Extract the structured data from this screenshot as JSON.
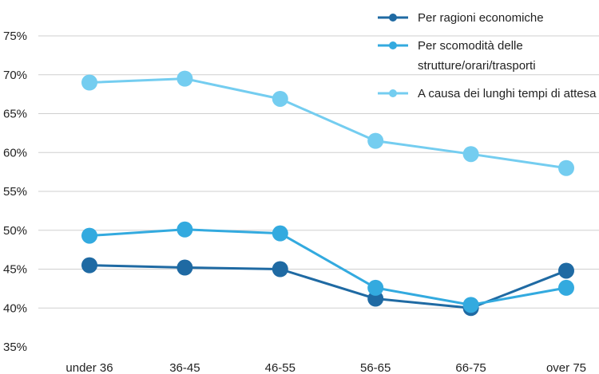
{
  "chart_data": {
    "type": "line",
    "categories": [
      "under 36",
      "36-45",
      "46-55",
      "56-65",
      "66-75",
      "over 75"
    ],
    "y_tick_labels": [
      "35%",
      "40%",
      "45%",
      "50%",
      "55%",
      "60%",
      "65%",
      "70%",
      "75%"
    ],
    "ylim": [
      35,
      75
    ],
    "grid": true,
    "legend_position": "top-right",
    "series": [
      {
        "name": "Per ragioni economiche",
        "color": "#1f6aa3",
        "values": [
          45.5,
          45.2,
          45.0,
          41.2,
          40.0,
          44.8
        ]
      },
      {
        "name": "Per scomodità delle strutture/orari/trasporti",
        "legend_lines": [
          "Per scomodità delle",
          "strutture/orari/trasporti"
        ],
        "color": "#33aadf",
        "values": [
          49.3,
          50.1,
          49.6,
          42.6,
          40.4,
          42.6
        ]
      },
      {
        "name": "A causa dei lunghi tempi di attesa",
        "color": "#74cdf0",
        "values": [
          69.0,
          69.5,
          66.9,
          61.5,
          59.8,
          58.0
        ]
      }
    ]
  }
}
